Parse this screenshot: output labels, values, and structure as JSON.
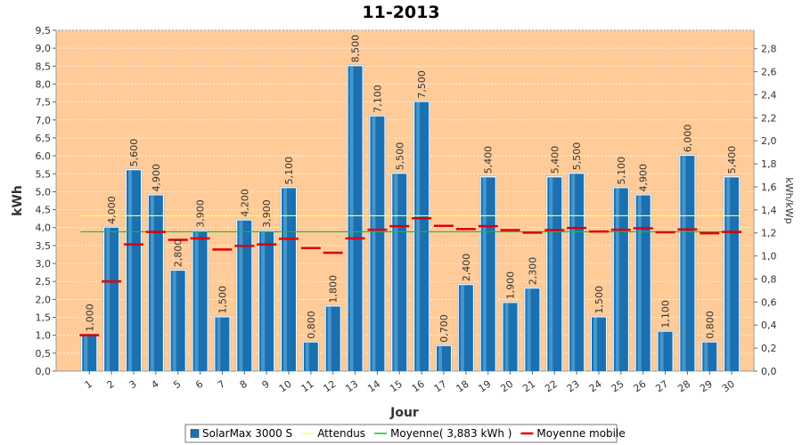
{
  "chart_data": {
    "type": "bar",
    "title": "11-2013",
    "xlabel": "Jour",
    "ylabel": "kWh",
    "y2label": "kWh/kWp",
    "ylim": [
      0,
      9.5
    ],
    "y2lim": [
      0,
      2.96
    ],
    "yticks": [
      "0,0",
      "0,5",
      "1,0",
      "1,5",
      "2,0",
      "2,5",
      "3,0",
      "3,5",
      "4,0",
      "4,5",
      "5,0",
      "5,5",
      "6,0",
      "6,5",
      "7,0",
      "7,5",
      "8,0",
      "8,5",
      "9,0",
      "9,5"
    ],
    "y2ticks": [
      "0,0",
      "0,2",
      "0,4",
      "0,6",
      "0,8",
      "1,0",
      "1,2",
      "1,4",
      "1,6",
      "1,8",
      "2,0",
      "2,2",
      "2,4",
      "2,6",
      "2,8"
    ],
    "categories": [
      "1",
      "2",
      "3",
      "4",
      "5",
      "6",
      "7",
      "8",
      "9",
      "10",
      "11",
      "12",
      "13",
      "14",
      "15",
      "16",
      "17",
      "18",
      "19",
      "20",
      "21",
      "22",
      "23",
      "24",
      "25",
      "26",
      "27",
      "28",
      "29",
      "30"
    ],
    "series": [
      {
        "name": "SolarMax 3000 S",
        "kind": "bar",
        "color": "#1a70b0",
        "values": [
          1.0,
          4.0,
          5.6,
          4.9,
          2.8,
          3.9,
          1.5,
          4.2,
          3.9,
          5.1,
          0.8,
          1.8,
          8.5,
          7.1,
          5.5,
          7.5,
          0.7,
          2.4,
          5.4,
          1.9,
          2.3,
          5.4,
          5.5,
          1.5,
          5.1,
          4.9,
          1.1,
          6.0,
          0.8,
          5.4
        ],
        "labels": [
          "1,000",
          "4,000",
          "5,600",
          "4,900",
          "2,800",
          "3,900",
          "1,500",
          "4,200",
          "3,900",
          "5,100",
          "0,800",
          "1,800",
          "8,500",
          "7,100",
          "5,500",
          "7,500",
          "0,700",
          "2,400",
          "5,400",
          "1,900",
          "2,300",
          "5,400",
          "5,500",
          "1,500",
          "5,100",
          "4,900",
          "1,100",
          "6,000",
          "0,800",
          "5,400"
        ]
      },
      {
        "name": "Attendus",
        "kind": "line",
        "color": "#ffff66",
        "value": 4.33
      },
      {
        "name": "Moyenne( 3,883 kWh )",
        "kind": "line",
        "color": "#22bb22",
        "value": 3.883
      },
      {
        "name": "Moyenne mobile",
        "kind": "marker",
        "color": "#dd0000",
        "values": [
          1.0,
          2.5,
          3.53,
          3.88,
          3.66,
          3.7,
          3.39,
          3.49,
          3.53,
          3.69,
          3.43,
          3.3,
          3.7,
          3.94,
          4.04,
          4.26,
          4.05,
          3.96,
          4.04,
          3.93,
          3.86,
          3.93,
          3.99,
          3.89,
          3.94,
          3.98,
          3.87,
          3.95,
          3.84,
          3.88
        ]
      }
    ],
    "grid": true,
    "background": "#ffcc99",
    "legend_position": "bottom"
  }
}
